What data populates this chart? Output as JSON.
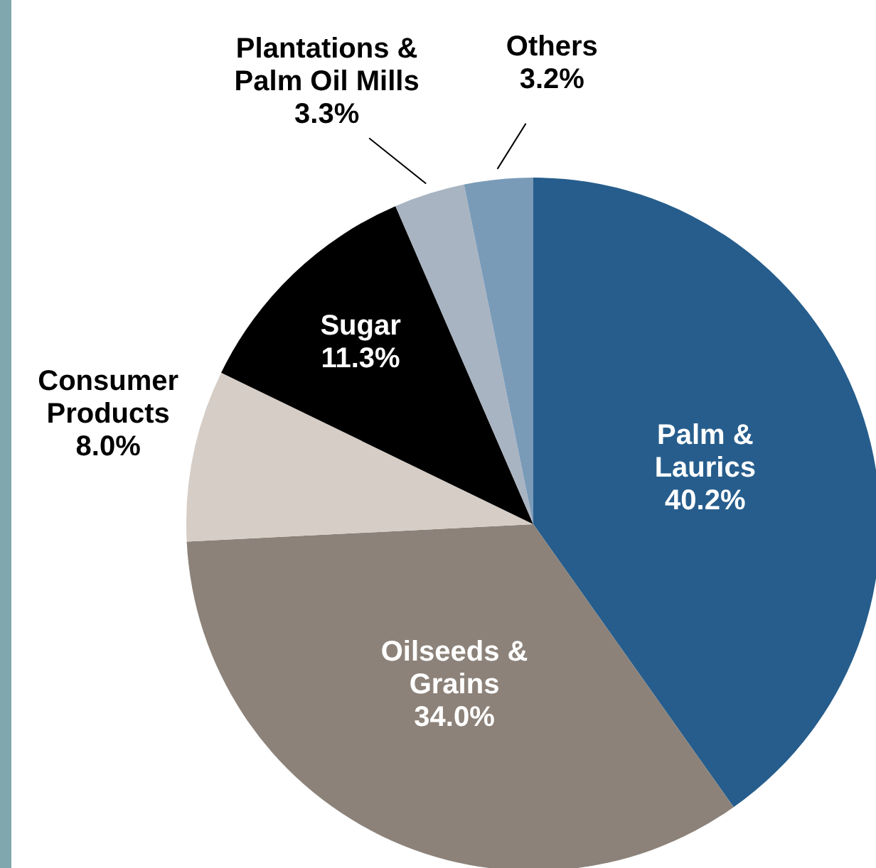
{
  "chart_data": {
    "type": "pie",
    "categories": [
      "Palm &\nLaurics",
      "Oilseeds &\nGrains",
      "Consumer\nProducts",
      "Sugar",
      "Plantations &\nPalm Oil Mills",
      "Others"
    ],
    "values": [
      40.2,
      34.0,
      8.0,
      11.3,
      3.3,
      3.2
    ],
    "value_labels": [
      "40.2%",
      "34.0%",
      "8.0%",
      "11.3%",
      "3.3%",
      "3.2%"
    ],
    "colors": [
      "#265d8c",
      "#8c8279",
      "#d5cdc6",
      "#000000",
      "#a9b4c2",
      "#7a9bb8"
    ]
  }
}
